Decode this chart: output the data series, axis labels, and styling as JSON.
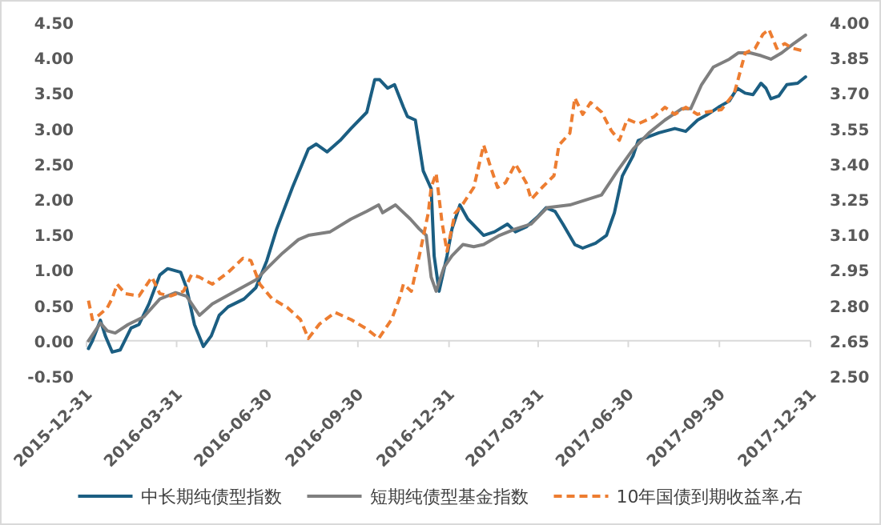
{
  "chart_data": {
    "type": "line",
    "xlim": [
      "2015-12-31",
      "2017-12-31"
    ],
    "xticks": [
      "2015-12-31",
      "2016-03-31",
      "2016-06-30",
      "2016-09-30",
      "2016-12-31",
      "2017-03-31",
      "2017-06-30",
      "2017-09-30",
      "2017-12-31"
    ],
    "ylim": [
      -0.5,
      4.5
    ],
    "yticks": [
      {
        "value": -0.5,
        "label": "-0.50"
      },
      {
        "value": 0,
        "label": "0.00"
      },
      {
        "value": 0.5,
        "label": "0.50"
      },
      {
        "value": 1,
        "label": "1.00"
      },
      {
        "value": 1.5,
        "label": "1.50"
      },
      {
        "value": 2,
        "label": "2.00"
      },
      {
        "value": 2.5,
        "label": "2.50"
      },
      {
        "value": 3,
        "label": "3.00"
      },
      {
        "value": 3.5,
        "label": "3.50"
      },
      {
        "value": 4,
        "label": "4.00"
      },
      {
        "value": 4.5,
        "label": "4.50"
      }
    ],
    "y2lim": [
      2.5,
      4.0
    ],
    "y2ticks": [
      {
        "value": 2.5,
        "label": "2.50"
      },
      {
        "value": 2.65,
        "label": "2.65"
      },
      {
        "value": 2.8,
        "label": "2.80"
      },
      {
        "value": 2.95,
        "label": "2.95"
      },
      {
        "value": 3.1,
        "label": "3.10"
      },
      {
        "value": 3.25,
        "label": "3.25"
      },
      {
        "value": 3.4,
        "label": "3.40"
      },
      {
        "value": 3.55,
        "label": "3.55"
      },
      {
        "value": 3.7,
        "label": "3.70"
      },
      {
        "value": 3.85,
        "label": "3.85"
      },
      {
        "value": 4.0,
        "label": "4.00"
      }
    ],
    "legend": "bottom",
    "series": [
      {
        "name": "中长期纯债型指数",
        "color": "#1b5e82",
        "line_style": "solid",
        "x": [
          "2016-01-02",
          "2016-01-06",
          "2016-01-14",
          "2016-01-19",
          "2016-01-26",
          "2016-02-03",
          "2016-02-14",
          "2016-02-22",
          "2016-03-03",
          "2016-03-14",
          "2016-03-22",
          "2016-04-04",
          "2016-04-10",
          "2016-04-18",
          "2016-04-27",
          "2016-05-05",
          "2016-05-13",
          "2016-05-22",
          "2016-06-07",
          "2016-06-19",
          "2016-06-30",
          "2016-07-10",
          "2016-07-26",
          "2016-08-11",
          "2016-08-19",
          "2016-08-30",
          "2016-09-12",
          "2016-09-23",
          "2016-10-09",
          "2016-10-17",
          "2016-10-22",
          "2016-10-30",
          "2016-11-06",
          "2016-11-15",
          "2016-11-19",
          "2016-11-27",
          "2016-12-05",
          "2016-12-13",
          "2016-12-16",
          "2016-12-21",
          "2016-12-29",
          "2017-01-03",
          "2017-01-11",
          "2017-01-19",
          "2017-02-04",
          "2017-02-15",
          "2017-02-28",
          "2017-03-08",
          "2017-03-19",
          "2017-03-31",
          "2017-04-08",
          "2017-04-17",
          "2017-04-25",
          "2017-05-07",
          "2017-05-15",
          "2017-05-28",
          "2017-06-08",
          "2017-06-16",
          "2017-06-24",
          "2017-07-05",
          "2017-07-10",
          "2017-07-31",
          "2017-08-16",
          "2017-08-27",
          "2017-09-08",
          "2017-09-17",
          "2017-09-29",
          "2017-10-10",
          "2017-10-18",
          "2017-10-26",
          "2017-11-03",
          "2017-11-11",
          "2017-11-16",
          "2017-11-21",
          "2017-11-29",
          "2017-12-07",
          "2017-12-18",
          "2017-12-26"
        ],
        "values": [
          -0.11,
          0,
          0.29,
          0.07,
          -0.16,
          -0.13,
          0.18,
          0.23,
          0.52,
          0.93,
          1.02,
          0.97,
          0.75,
          0.23,
          -0.08,
          0.07,
          0.36,
          0.48,
          0.59,
          0.75,
          1.13,
          1.58,
          2.17,
          2.71,
          2.78,
          2.67,
          2.83,
          3.0,
          3.23,
          3.69,
          3.69,
          3.57,
          3.62,
          3.3,
          3.17,
          3.12,
          2.4,
          2.15,
          1.2,
          0.7,
          1.2,
          1.58,
          1.92,
          1.72,
          1.49,
          1.54,
          1.65,
          1.54,
          1.61,
          1.76,
          1.88,
          1.83,
          1.65,
          1.36,
          1.31,
          1.38,
          1.49,
          1.81,
          2.33,
          2.62,
          2.83,
          2.94,
          3.0,
          2.96,
          3.12,
          3.19,
          3.3,
          3.39,
          3.57,
          3.5,
          3.48,
          3.64,
          3.57,
          3.42,
          3.46,
          3.62,
          3.64,
          3.73
        ]
      },
      {
        "name": "短期纯债型基金指数",
        "color": "#7f7f7f",
        "line_style": "solid",
        "x": [
          "2016-01-02",
          "2016-01-14",
          "2016-01-21",
          "2016-01-29",
          "2016-02-11",
          "2016-02-27",
          "2016-03-14",
          "2016-03-30",
          "2016-04-10",
          "2016-04-23",
          "2016-05-06",
          "2016-05-29",
          "2016-06-19",
          "2016-06-30",
          "2016-07-16",
          "2016-08-01",
          "2016-08-11",
          "2016-09-02",
          "2016-09-23",
          "2016-10-09",
          "2016-10-21",
          "2016-10-25",
          "2016-11-07",
          "2016-11-22",
          "2016-12-01",
          "2016-12-08",
          "2016-12-13",
          "2016-12-18",
          "2016-12-26",
          "2017-01-03",
          "2017-01-14",
          "2017-01-25",
          "2017-02-04",
          "2017-02-20",
          "2017-03-08",
          "2017-03-24",
          "2017-04-09",
          "2017-05-02",
          "2017-05-18",
          "2017-06-03",
          "2017-06-19",
          "2017-07-05",
          "2017-07-21",
          "2017-08-06",
          "2017-08-23",
          "2017-09-01",
          "2017-09-12",
          "2017-09-24",
          "2017-10-10",
          "2017-10-19",
          "2017-10-31",
          "2017-11-11",
          "2017-11-21",
          "2017-12-02",
          "2017-12-13",
          "2017-12-26"
        ],
        "values": [
          0,
          0.25,
          0.14,
          0.11,
          0.23,
          0.34,
          0.59,
          0.68,
          0.63,
          0.36,
          0.52,
          0.7,
          0.86,
          1.02,
          1.24,
          1.43,
          1.49,
          1.54,
          1.72,
          1.83,
          1.92,
          1.81,
          1.92,
          1.72,
          1.58,
          1.49,
          0.9,
          0.7,
          1.04,
          1.2,
          1.36,
          1.33,
          1.36,
          1.49,
          1.58,
          1.65,
          1.88,
          1.92,
          1.99,
          2.06,
          2.4,
          2.71,
          2.94,
          3.12,
          3.28,
          3.28,
          3.62,
          3.87,
          3.98,
          4.07,
          4.07,
          4.03,
          3.98,
          4.07,
          4.19,
          4.32
        ]
      },
      {
        "name": "10年国债到期收益率,右",
        "color": "#ed7d31",
        "line_style": "dashed",
        "axis": "y2",
        "x": [
          "2016-01-02",
          "2016-01-06",
          "2016-01-13",
          "2016-01-21",
          "2016-01-26",
          "2016-01-31",
          "2016-02-08",
          "2016-02-22",
          "2016-03-06",
          "2016-03-14",
          "2016-03-25",
          "2016-04-07",
          "2016-04-15",
          "2016-04-23",
          "2016-05-06",
          "2016-05-22",
          "2016-06-06",
          "2016-06-14",
          "2016-06-23",
          "2016-07-05",
          "2016-07-21",
          "2016-08-03",
          "2016-08-11",
          "2016-08-22",
          "2016-09-07",
          "2016-09-23",
          "2016-10-09",
          "2016-10-21",
          "2016-11-03",
          "2016-11-11",
          "2016-11-15",
          "2016-11-23",
          "2016-12-01",
          "2016-12-10",
          "2016-12-13",
          "2016-12-18",
          "2016-12-24",
          "2016-12-29",
          "2017-01-06",
          "2017-01-14",
          "2017-01-25",
          "2017-02-04",
          "2017-02-10",
          "2017-02-18",
          "2017-02-26",
          "2017-03-08",
          "2017-03-19",
          "2017-03-24",
          "2017-04-04",
          "2017-04-16",
          "2017-04-21",
          "2017-05-02",
          "2017-05-07",
          "2017-05-15",
          "2017-05-23",
          "2017-06-03",
          "2017-06-13",
          "2017-06-21",
          "2017-06-29",
          "2017-07-10",
          "2017-07-26",
          "2017-08-06",
          "2017-08-16",
          "2017-08-27",
          "2017-09-08",
          "2017-09-17",
          "2017-10-02",
          "2017-10-15",
          "2017-10-19",
          "2017-10-26",
          "2017-11-05",
          "2017-11-13",
          "2017-11-19",
          "2017-11-27",
          "2017-12-05",
          "2017-12-13",
          "2017-12-23"
        ],
        "values": [
          2.82,
          2.74,
          2.76,
          2.79,
          2.83,
          2.89,
          2.85,
          2.84,
          2.92,
          2.85,
          2.84,
          2.86,
          2.93,
          2.92,
          2.89,
          2.94,
          3.0,
          2.99,
          2.89,
          2.83,
          2.79,
          2.74,
          2.66,
          2.72,
          2.77,
          2.74,
          2.7,
          2.66,
          2.74,
          2.83,
          2.89,
          2.86,
          3.01,
          3.19,
          3.3,
          3.36,
          3.15,
          3.03,
          3.19,
          3.23,
          3.3,
          3.48,
          3.4,
          3.3,
          3.32,
          3.4,
          3.32,
          3.25,
          3.3,
          3.35,
          3.48,
          3.53,
          3.68,
          3.61,
          3.66,
          3.62,
          3.54,
          3.5,
          3.59,
          3.57,
          3.6,
          3.64,
          3.61,
          3.64,
          3.61,
          3.62,
          3.63,
          3.7,
          3.76,
          3.87,
          3.89,
          3.95,
          3.97,
          3.89,
          3.91,
          3.89,
          3.88
        ]
      }
    ]
  }
}
